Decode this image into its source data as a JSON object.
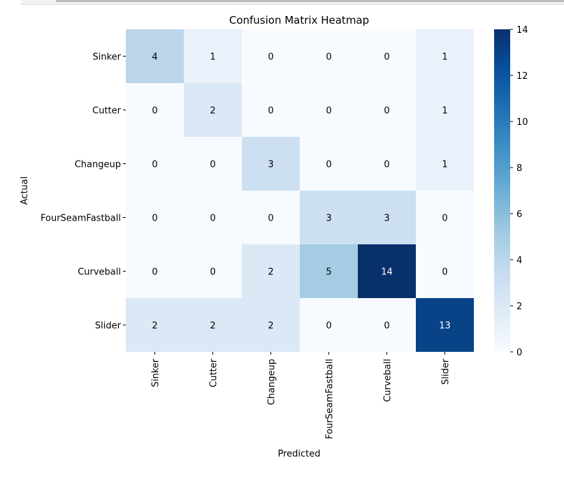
{
  "chart_data": {
    "type": "heatmap",
    "title": "Confusion Matrix Heatmap",
    "xlabel": "Predicted",
    "ylabel": "Actual",
    "row_labels": [
      "Sinker",
      "Cutter",
      "Changeup",
      "FourSeamFastball",
      "Curveball",
      "Slider"
    ],
    "col_labels": [
      "Sinker",
      "Cutter",
      "Changeup",
      "FourSeamFastball",
      "Curveball",
      "Slider"
    ],
    "values": [
      [
        4,
        1,
        0,
        0,
        0,
        1
      ],
      [
        0,
        2,
        0,
        0,
        0,
        1
      ],
      [
        0,
        0,
        3,
        0,
        0,
        1
      ],
      [
        0,
        0,
        0,
        3,
        3,
        0
      ],
      [
        0,
        0,
        2,
        5,
        14,
        0
      ],
      [
        2,
        2,
        2,
        0,
        0,
        13
      ]
    ],
    "colormap": "Blues",
    "vmin": 0,
    "vmax": 14,
    "colorbar_ticks": [
      "0",
      "2",
      "4",
      "6",
      "8",
      "10",
      "12",
      "14"
    ]
  }
}
